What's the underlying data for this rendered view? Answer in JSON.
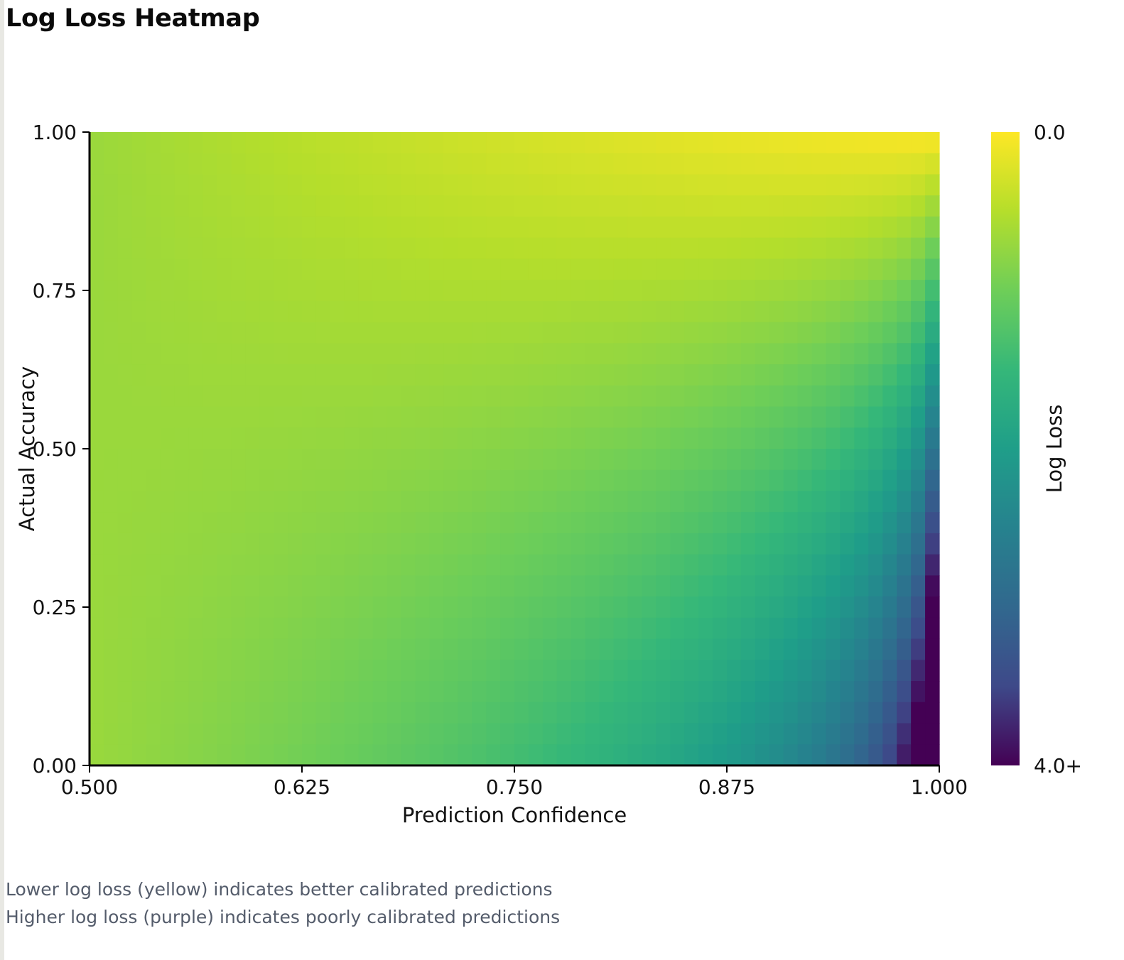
{
  "page": {
    "title": "Log Loss Heatmap",
    "notes": [
      "Lower log loss (yellow) indicates better calibrated predictions",
      "Higher log loss (purple) indicates poorly calibrated predictions"
    ]
  },
  "chart_data": {
    "type": "heatmap",
    "title": "Log Loss Heatmap",
    "xlabel": "Prediction Confidence",
    "ylabel": "Actual Accuracy",
    "xlim": [
      0.5,
      1.0
    ],
    "ylim": [
      0.0,
      1.0
    ],
    "x_ticks": [
      "0.500",
      "0.625",
      "0.750",
      "0.875",
      "1.000"
    ],
    "y_ticks": [
      "0.00",
      "0.25",
      "0.50",
      "0.75",
      "1.00"
    ],
    "value": "log loss = -(a*ln(p) + (1-a)*ln(1-p)), p = prediction confidence, a = actual accuracy",
    "colorbar": {
      "label": "Log Loss",
      "min_label": "0.0",
      "max_label": "4.0+",
      "range": [
        0.0,
        4.0
      ],
      "colormap": "viridis",
      "position": "right"
    },
    "grid": false,
    "colors": {
      "low": "#fde725",
      "mid": "#21918c",
      "high": "#440154"
    }
  }
}
